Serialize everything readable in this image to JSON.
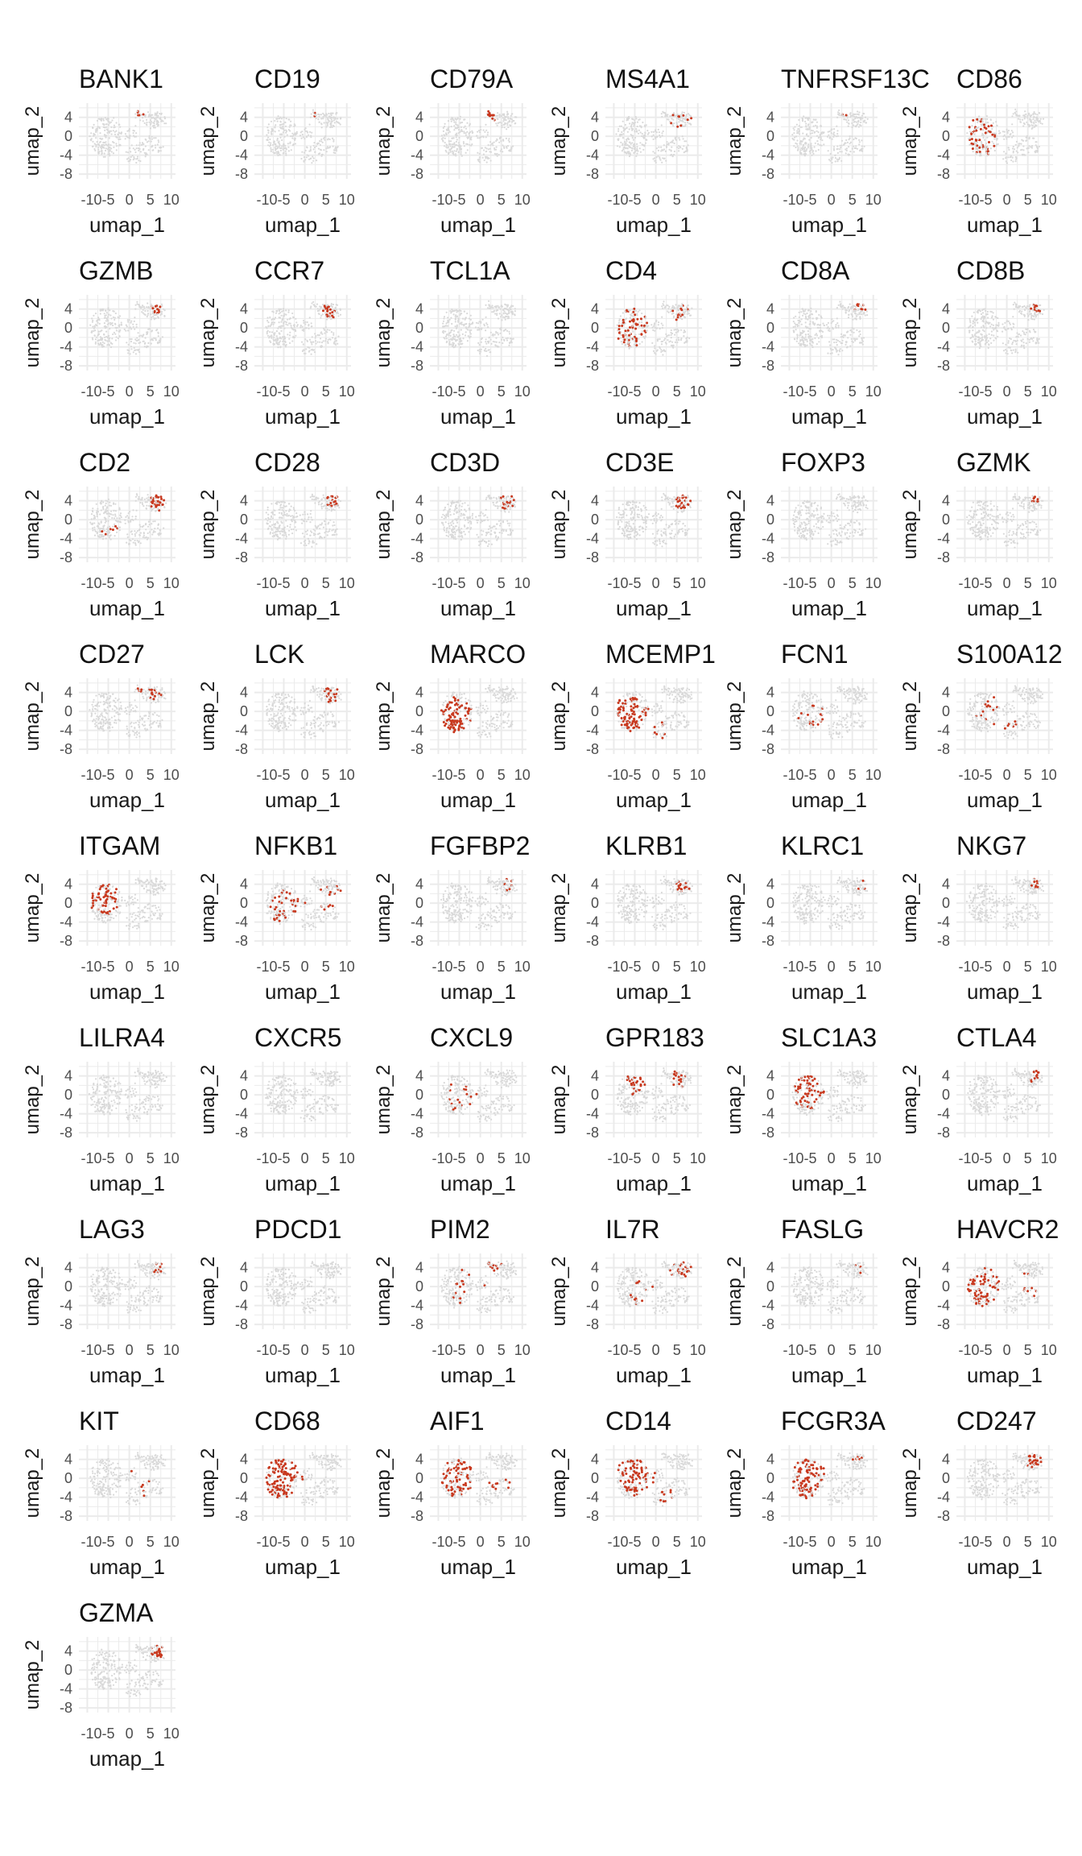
{
  "chart_data": {
    "type": "scatter",
    "title": "",
    "xlabel": "umap_1",
    "ylabel": "umap_2",
    "xticks": [
      "-10",
      "-5",
      "0",
      "5",
      "10"
    ],
    "xtick_labels_shown": [
      "-10-5",
      "0",
      "5",
      "10"
    ],
    "yticks": [
      "4",
      "0",
      "-4",
      "-8"
    ],
    "xlim": [
      -12,
      11
    ],
    "ylim": [
      -9,
      7
    ],
    "grid": true,
    "low_color": "#d9d9d9",
    "high_color": "#c8391f",
    "panels": [
      {
        "gene": "BANK1",
        "hotspots": [
          {
            "x": 2.5,
            "y": 4.5,
            "r": 1.2,
            "level": 0.5
          }
        ]
      },
      {
        "gene": "CD19",
        "hotspots": [
          {
            "x": 3.0,
            "y": 5.0,
            "r": 1.0,
            "level": 0.4
          }
        ]
      },
      {
        "gene": "CD79A",
        "hotspots": [
          {
            "x": 2.5,
            "y": 4.5,
            "r": 1.4,
            "level": 0.7
          }
        ]
      },
      {
        "gene": "MS4A1",
        "hotspots": [
          {
            "x": 6.0,
            "y": 3.0,
            "r": 3.0,
            "level": 0.25
          }
        ]
      },
      {
        "gene": "TNFRSF13C",
        "hotspots": [
          {
            "x": 2.5,
            "y": 4.5,
            "r": 1.0,
            "level": 0.4
          }
        ]
      },
      {
        "gene": "CD86",
        "hotspots": [
          {
            "x": -6.0,
            "y": 0.0,
            "r": 4.0,
            "level": 0.5
          }
        ]
      },
      {
        "gene": "GZMB",
        "hotspots": [
          {
            "x": 7.0,
            "y": 4.0,
            "r": 1.5,
            "level": 0.7
          }
        ]
      },
      {
        "gene": "CCR7",
        "hotspots": [
          {
            "x": 6.0,
            "y": 4.0,
            "r": 2.0,
            "level": 0.4
          }
        ]
      },
      {
        "gene": "TCL1A",
        "hotspots": []
      },
      {
        "gene": "CD4",
        "hotspots": [
          {
            "x": -5.5,
            "y": 0.0,
            "r": 4.0,
            "level": 0.6
          },
          {
            "x": 6.0,
            "y": 3.0,
            "r": 2.5,
            "level": 0.35
          }
        ]
      },
      {
        "gene": "CD8A",
        "hotspots": [
          {
            "x": 7.0,
            "y": 4.5,
            "r": 1.5,
            "level": 0.6
          }
        ]
      },
      {
        "gene": "CD8B",
        "hotspots": [
          {
            "x": 7.0,
            "y": 4.5,
            "r": 1.5,
            "level": 0.4
          }
        ]
      },
      {
        "gene": "CD2",
        "hotspots": [
          {
            "x": 6.5,
            "y": 4.0,
            "r": 2.0,
            "level": 0.8
          },
          {
            "x": -5.0,
            "y": -2.0,
            "r": 2.0,
            "level": 0.15
          }
        ]
      },
      {
        "gene": "CD28",
        "hotspots": [
          {
            "x": 6.5,
            "y": 4.0,
            "r": 1.8,
            "level": 0.45
          }
        ]
      },
      {
        "gene": "CD3D",
        "hotspots": [
          {
            "x": 6.5,
            "y": 4.0,
            "r": 2.0,
            "level": 0.6
          }
        ]
      },
      {
        "gene": "CD3E",
        "hotspots": [
          {
            "x": 6.5,
            "y": 4.0,
            "r": 2.0,
            "level": 0.85
          }
        ]
      },
      {
        "gene": "FOXP3",
        "hotspots": [
          {
            "x": 6.0,
            "y": 4.0,
            "r": 1.5,
            "level": 0.1
          }
        ]
      },
      {
        "gene": "GZMK",
        "hotspots": [
          {
            "x": 7.0,
            "y": 4.5,
            "r": 1.5,
            "level": 0.5
          }
        ]
      },
      {
        "gene": "CD27",
        "hotspots": [
          {
            "x": 6.0,
            "y": 4.0,
            "r": 2.0,
            "level": 0.5
          },
          {
            "x": 2.5,
            "y": 4.5,
            "r": 1.0,
            "level": 0.4
          }
        ]
      },
      {
        "gene": "LCK",
        "hotspots": [
          {
            "x": 6.5,
            "y": 4.0,
            "r": 2.0,
            "level": 0.6
          }
        ]
      },
      {
        "gene": "MARCO",
        "hotspots": [
          {
            "x": -6.0,
            "y": -1.0,
            "r": 4.5,
            "level": 0.95
          }
        ]
      },
      {
        "gene": "MCEMP1",
        "hotspots": [
          {
            "x": -6.0,
            "y": -1.0,
            "r": 4.5,
            "level": 0.8
          },
          {
            "x": 0.5,
            "y": -4.0,
            "r": 2.0,
            "level": 0.3
          }
        ]
      },
      {
        "gene": "FCN1",
        "hotspots": [
          {
            "x": -4.0,
            "y": -1.0,
            "r": 4.0,
            "level": 0.2
          }
        ]
      },
      {
        "gene": "S100A12",
        "hotspots": [
          {
            "x": 0.5,
            "y": -3.0,
            "r": 2.0,
            "level": 0.45
          },
          {
            "x": -4.0,
            "y": 0.0,
            "r": 3.5,
            "level": 0.15
          }
        ]
      },
      {
        "gene": "ITGAM",
        "hotspots": [
          {
            "x": -6.0,
            "y": 1.0,
            "r": 3.5,
            "level": 0.75
          }
        ]
      },
      {
        "gene": "NFKB1",
        "hotspots": [
          {
            "x": -4.0,
            "y": 0.0,
            "r": 5.0,
            "level": 0.4
          },
          {
            "x": 6.0,
            "y": 1.0,
            "r": 3.0,
            "level": 0.4
          }
        ]
      },
      {
        "gene": "FGFBP2",
        "hotspots": [
          {
            "x": 7.0,
            "y": 4.0,
            "r": 1.5,
            "level": 0.2
          }
        ]
      },
      {
        "gene": "KLRB1",
        "hotspots": [
          {
            "x": 6.5,
            "y": 4.0,
            "r": 2.0,
            "level": 0.5
          }
        ]
      },
      {
        "gene": "KLRC1",
        "hotspots": [
          {
            "x": 7.0,
            "y": 4.0,
            "r": 1.5,
            "level": 0.1
          }
        ]
      },
      {
        "gene": "NKG7",
        "hotspots": [
          {
            "x": 7.0,
            "y": 4.5,
            "r": 1.5,
            "level": 0.6
          }
        ]
      },
      {
        "gene": "LILRA4",
        "hotspots": []
      },
      {
        "gene": "CXCR5",
        "hotspots": [
          {
            "x": 3.0,
            "y": 4.5,
            "r": 1.0,
            "level": 0.1
          }
        ]
      },
      {
        "gene": "CXCL9",
        "hotspots": [
          {
            "x": -4.0,
            "y": 0.0,
            "r": 4.0,
            "level": 0.15
          }
        ]
      },
      {
        "gene": "GPR183",
        "hotspots": [
          {
            "x": -4.5,
            "y": 3.0,
            "r": 3.0,
            "level": 0.65
          },
          {
            "x": 5.5,
            "y": 3.5,
            "r": 2.5,
            "level": 0.35
          }
        ]
      },
      {
        "gene": "SLC1A3",
        "hotspots": [
          {
            "x": -5.5,
            "y": 1.0,
            "r": 4.0,
            "level": 0.65
          }
        ]
      },
      {
        "gene": "CTLA4",
        "hotspots": [
          {
            "x": 7.0,
            "y": 4.0,
            "r": 1.5,
            "level": 0.35
          }
        ]
      },
      {
        "gene": "LAG3",
        "hotspots": [
          {
            "x": 7.0,
            "y": 4.0,
            "r": 1.5,
            "level": 0.15
          }
        ]
      },
      {
        "gene": "PDCD1",
        "hotspots": [
          {
            "x": 7.0,
            "y": 4.0,
            "r": 1.5,
            "level": 0.1
          }
        ]
      },
      {
        "gene": "PIM2",
        "hotspots": [
          {
            "x": 3.0,
            "y": 4.5,
            "r": 1.8,
            "level": 0.75
          },
          {
            "x": -3.0,
            "y": 0.0,
            "r": 4.0,
            "level": 0.1
          }
        ]
      },
      {
        "gene": "IL7R",
        "hotspots": [
          {
            "x": 6.0,
            "y": 3.0,
            "r": 3.0,
            "level": 0.55
          },
          {
            "x": -3.0,
            "y": -2.0,
            "r": 4.0,
            "level": 0.35
          }
        ]
      },
      {
        "gene": "FASLG",
        "hotspots": [
          {
            "x": 7.0,
            "y": 4.0,
            "r": 1.5,
            "level": 0.1
          }
        ]
      },
      {
        "gene": "HAVCR2",
        "hotspots": [
          {
            "x": -5.0,
            "y": 0.0,
            "r": 4.5,
            "level": 0.55
          },
          {
            "x": 5.0,
            "y": 0.0,
            "r": 3.0,
            "level": 0.3
          }
        ]
      },
      {
        "gene": "KIT",
        "hotspots": [
          {
            "x": 1.5,
            "y": 1.5,
            "r": 0.9,
            "level": 0.8
          },
          {
            "x": 4.5,
            "y": -2.0,
            "r": 2.0,
            "level": 0.2
          }
        ]
      },
      {
        "gene": "CD68",
        "hotspots": [
          {
            "x": -5.5,
            "y": 0.0,
            "r": 5.0,
            "level": 0.95
          }
        ]
      },
      {
        "gene": "AIF1",
        "hotspots": [
          {
            "x": -5.5,
            "y": 1.0,
            "r": 4.5,
            "level": 0.75
          },
          {
            "x": 4.0,
            "y": -1.0,
            "r": 3.0,
            "level": 0.25
          }
        ]
      },
      {
        "gene": "CD14",
        "hotspots": [
          {
            "x": -4.5,
            "y": 1.0,
            "r": 4.5,
            "level": 0.85
          },
          {
            "x": 2.5,
            "y": -4.0,
            "r": 2.0,
            "level": 0.3
          }
        ]
      },
      {
        "gene": "FCGR3A",
        "hotspots": [
          {
            "x": -5.5,
            "y": 0.0,
            "r": 4.5,
            "level": 0.85
          },
          {
            "x": 6.0,
            "y": 4.0,
            "r": 1.5,
            "level": 0.3
          }
        ]
      },
      {
        "gene": "CD247",
        "hotspots": [
          {
            "x": 6.5,
            "y": 4.0,
            "r": 2.0,
            "level": 0.75
          }
        ]
      },
      {
        "gene": "GZMA",
        "hotspots": [
          {
            "x": 7.0,
            "y": 4.0,
            "r": 1.8,
            "level": 0.8
          }
        ]
      }
    ]
  }
}
